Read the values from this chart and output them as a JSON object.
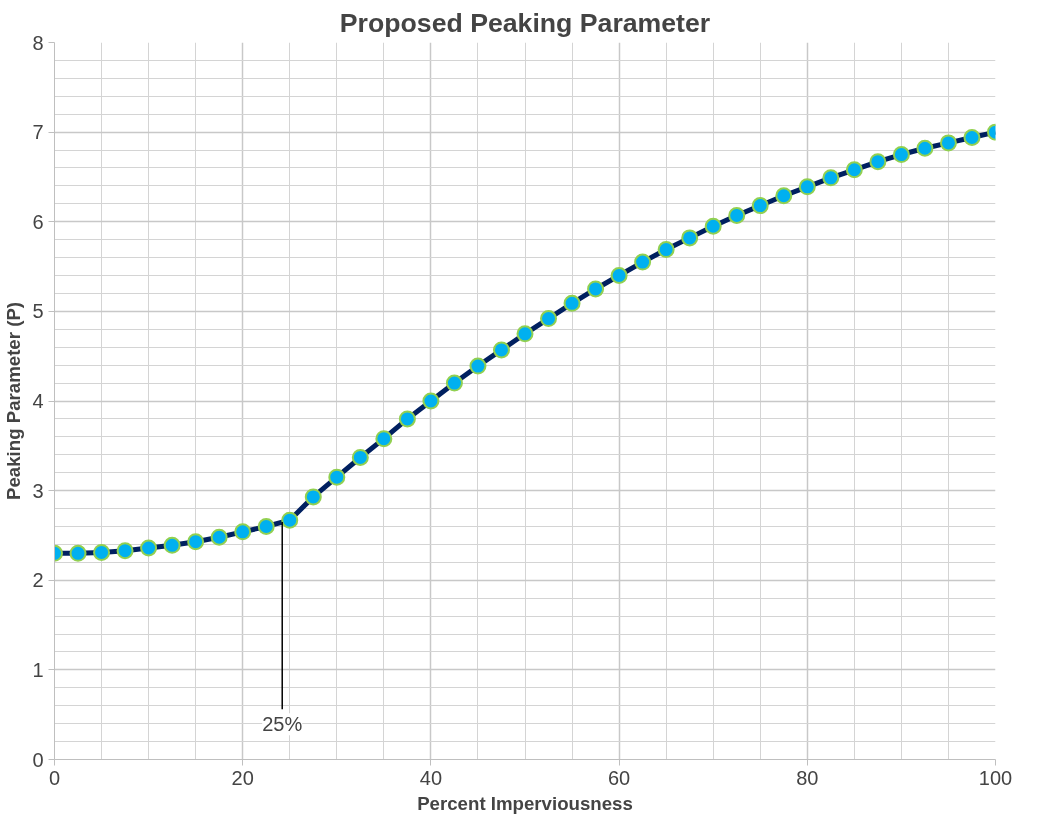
{
  "chart_data": {
    "type": "line",
    "title": "Proposed Peaking Parameter",
    "xlabel": "Percent Imperviousness",
    "ylabel": "Peaking Parameter (P)",
    "x": [
      0,
      2.5,
      5,
      7.5,
      10,
      12.5,
      15,
      17.5,
      20,
      22.5,
      25,
      27.5,
      30,
      32.5,
      35,
      37.5,
      40,
      42.5,
      45,
      47.5,
      50,
      52.5,
      55,
      57.5,
      60,
      62.5,
      65,
      67.5,
      70,
      72.5,
      75,
      77.5,
      80,
      82.5,
      85,
      87.5,
      90,
      92.5,
      95,
      97.5,
      100
    ],
    "series": [
      {
        "color": "#002060",
        "values": [
          2.3,
          2.3,
          2.31,
          2.33,
          2.36,
          2.39,
          2.43,
          2.48,
          2.54,
          2.6,
          2.67,
          2.93,
          3.15,
          3.37,
          3.58,
          3.8,
          4.0,
          4.2,
          4.39,
          4.57,
          4.75,
          4.92,
          5.09,
          5.25,
          5.4,
          5.55,
          5.69,
          5.82,
          5.95,
          6.07,
          6.18,
          6.29,
          6.39,
          6.49,
          6.58,
          6.67,
          6.75,
          6.82,
          6.88,
          6.94,
          7.0
        ]
      }
    ],
    "xlim": [
      0,
      100
    ],
    "xticks": [
      0,
      20,
      40,
      60,
      80,
      100
    ],
    "ylim": [
      0,
      8
    ],
    "yticks": [
      0,
      1,
      2,
      3,
      4,
      5,
      6,
      7,
      8
    ],
    "grid": true,
    "marker": "circle",
    "line_style": "solid",
    "annotations": [
      {
        "text": "25%",
        "x": 24.2,
        "y": 2.65
      }
    ]
  }
}
